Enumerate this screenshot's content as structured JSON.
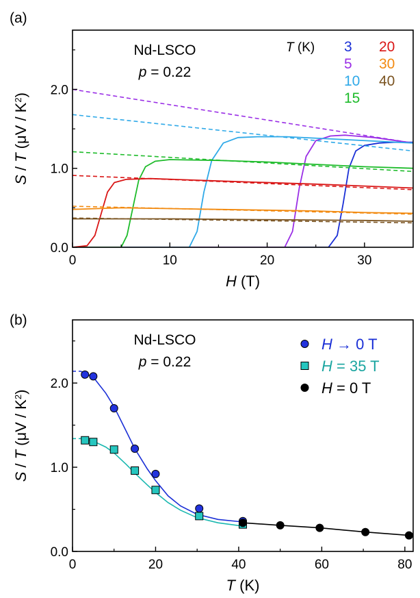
{
  "chart_data": [
    {
      "type": "line",
      "panel_label": "(a)",
      "xlabel": {
        "var": "H",
        "unit": " (T)"
      },
      "ylabel": {
        "pre": "S / T (μV / K",
        "sup": "2",
        "post": ")"
      },
      "xlim": [
        0,
        35
      ],
      "ylim": [
        0,
        2.75
      ],
      "xticks": [
        0,
        10,
        20,
        30
      ],
      "xtick_labels": [
        "0",
        "10",
        "20",
        "30"
      ],
      "yticks": [
        0,
        1,
        2
      ],
      "ytick_labels": [
        "0.0",
        "1.0",
        "2.0"
      ],
      "annotation": {
        "material": "Nd-LSCO",
        "doping_var": "p",
        "doping_value": " = 0.22"
      },
      "legend": {
        "title_var": "T",
        "title_unit": " (K)",
        "placement": "top-right"
      },
      "series": [
        {
          "name": "3",
          "color": "#1a2fd6",
          "points": [
            [
              0,
              0.0
            ],
            [
              26.3,
              0.0
            ],
            [
              27.2,
              0.15
            ],
            [
              27.8,
              0.55
            ],
            [
              28.4,
              1.0
            ],
            [
              29.1,
              1.22
            ],
            [
              30,
              1.29
            ],
            [
              31.5,
              1.32
            ],
            [
              33,
              1.33
            ],
            [
              35,
              1.33
            ]
          ],
          "extrapolation": []
        },
        {
          "name": "5",
          "color": "#9a2ee6",
          "points": [
            [
              0,
              0.0
            ],
            [
              21.8,
              0.0
            ],
            [
              22.6,
              0.2
            ],
            [
              23.3,
              0.75
            ],
            [
              24,
              1.15
            ],
            [
              25,
              1.35
            ],
            [
              26.5,
              1.41
            ],
            [
              28,
              1.42
            ],
            [
              31,
              1.39
            ],
            [
              35,
              1.32
            ]
          ],
          "extrapolation": [
            [
              0,
              2.0
            ],
            [
              35,
              1.32
            ]
          ]
        },
        {
          "name": "10",
          "color": "#2fa9e8",
          "points": [
            [
              0,
              0.0
            ],
            [
              12,
              0.0
            ],
            [
              12.8,
              0.2
            ],
            [
              13.5,
              0.7
            ],
            [
              14.3,
              1.1
            ],
            [
              15.5,
              1.32
            ],
            [
              17,
              1.39
            ],
            [
              19,
              1.4
            ],
            [
              22,
              1.4
            ],
            [
              27,
              1.37
            ],
            [
              35,
              1.32
            ]
          ],
          "extrapolation": [
            [
              0,
              1.68
            ],
            [
              35,
              1.22
            ]
          ]
        },
        {
          "name": "15",
          "color": "#1dbb2a",
          "points": [
            [
              0,
              0.0
            ],
            [
              5,
              0.0
            ],
            [
              5.6,
              0.15
            ],
            [
              6.2,
              0.5
            ],
            [
              6.8,
              0.85
            ],
            [
              7.5,
              1.02
            ],
            [
              8.5,
              1.09
            ],
            [
              10,
              1.11
            ],
            [
              15,
              1.1
            ],
            [
              20,
              1.08
            ],
            [
              25,
              1.05
            ],
            [
              30,
              1.02
            ],
            [
              35,
              1.0
            ]
          ],
          "extrapolation": [
            [
              0,
              1.21
            ],
            [
              35,
              0.96
            ]
          ]
        },
        {
          "name": "20",
          "color": "#d91616",
          "points": [
            [
              0,
              0.0
            ],
            [
              1.5,
              0.02
            ],
            [
              2.3,
              0.15
            ],
            [
              3,
              0.45
            ],
            [
              3.6,
              0.7
            ],
            [
              4.3,
              0.82
            ],
            [
              5.5,
              0.86
            ],
            [
              8,
              0.87
            ],
            [
              15,
              0.84
            ],
            [
              25,
              0.8
            ],
            [
              35,
              0.75
            ]
          ],
          "extrapolation": [
            [
              0,
              0.91
            ],
            [
              35,
              0.73
            ]
          ]
        },
        {
          "name": "30",
          "color": "#f28a10",
          "points": [
            [
              0,
              0.48
            ],
            [
              5,
              0.5
            ],
            [
              10,
              0.49
            ],
            [
              15,
              0.48
            ],
            [
              20,
              0.47
            ],
            [
              25,
              0.46
            ],
            [
              30,
              0.44
            ],
            [
              35,
              0.43
            ]
          ],
          "extrapolation": [
            [
              0,
              0.52
            ],
            [
              35,
              0.42
            ]
          ]
        },
        {
          "name": "40",
          "color": "#7a5320",
          "points": [
            [
              0,
              0.36
            ],
            [
              10,
              0.36
            ],
            [
              20,
              0.35
            ],
            [
              30,
              0.34
            ],
            [
              35,
              0.33
            ]
          ],
          "extrapolation": [
            [
              0,
              0.37
            ],
            [
              35,
              0.31
            ]
          ]
        }
      ]
    },
    {
      "type": "scatter",
      "panel_label": "(b)",
      "xlabel": {
        "var": "T",
        "unit": " (K)"
      },
      "ylabel": {
        "pre": "S / T (μV / K",
        "sup": "2",
        "post": ")"
      },
      "xlim": [
        0,
        82
      ],
      "ylim": [
        0,
        2.75
      ],
      "xticks": [
        0,
        20,
        40,
        60,
        80
      ],
      "xtick_labels": [
        "0",
        "20",
        "40",
        "60",
        "80"
      ],
      "yticks": [
        0,
        1,
        2
      ],
      "ytick_labels": [
        "0.0",
        "1.0",
        "2.0"
      ],
      "annotation": {
        "material": "Nd-LSCO",
        "doping_var": "p",
        "doping_value": " = 0.22"
      },
      "legend_placement": "top-right",
      "series": [
        {
          "name": "H → 0 T",
          "name_var": "H",
          "name_rest": " → 0 T",
          "label_color": "#1a2fd6",
          "marker": "circle",
          "fill": "#2233dd",
          "line_color": "#1a2fd6",
          "x": [
            3,
            5,
            10,
            15,
            20,
            30.5,
            41
          ],
          "y": [
            2.1,
            2.08,
            1.7,
            1.22,
            0.92,
            0.51,
            0.36
          ],
          "fit": [
            [
              0,
              2.14
            ],
            [
              2,
              2.14
            ],
            [
              5,
              2.07
            ],
            [
              8,
              1.88
            ],
            [
              10,
              1.72
            ],
            [
              13,
              1.42
            ],
            [
              15,
              1.22
            ],
            [
              18,
              0.98
            ],
            [
              20,
              0.84
            ],
            [
              23,
              0.66
            ],
            [
              26,
              0.54
            ],
            [
              30,
              0.44
            ],
            [
              35,
              0.38
            ],
            [
              41,
              0.35
            ]
          ]
        },
        {
          "name": "H = 35 T",
          "name_var": "H",
          "name_rest": " = 35 T",
          "label_color": "#1aa5a0",
          "marker": "square",
          "fill": "#26c6bf",
          "line_color": "#1ab8b0",
          "x": [
            3,
            5,
            10,
            15,
            20,
            30.5,
            41
          ],
          "y": [
            1.32,
            1.3,
            1.21,
            0.96,
            0.73,
            0.42,
            0.32
          ],
          "fit": [
            [
              0,
              1.34
            ],
            [
              2,
              1.34
            ],
            [
              5,
              1.31
            ],
            [
              8,
              1.24
            ],
            [
              10,
              1.17
            ],
            [
              13,
              1.03
            ],
            [
              15,
              0.93
            ],
            [
              18,
              0.79
            ],
            [
              20,
              0.7
            ],
            [
              23,
              0.58
            ],
            [
              26,
              0.49
            ],
            [
              30,
              0.4
            ],
            [
              35,
              0.34
            ],
            [
              41,
              0.3
            ]
          ]
        },
        {
          "name": "H = 0 T",
          "name_var": "H",
          "name_rest": " = 0 T",
          "label_color": "#000000",
          "marker": "circle",
          "fill": "#000000",
          "line_color": "#000000",
          "x": [
            41,
            50,
            59.5,
            70.5,
            81
          ],
          "y": [
            0.34,
            0.31,
            0.28,
            0.23,
            0.19
          ],
          "fit": [
            [
              41,
              0.34
            ],
            [
              50,
              0.31
            ],
            [
              59.5,
              0.28
            ],
            [
              70.5,
              0.23
            ],
            [
              81,
              0.19
            ]
          ]
        }
      ]
    }
  ]
}
